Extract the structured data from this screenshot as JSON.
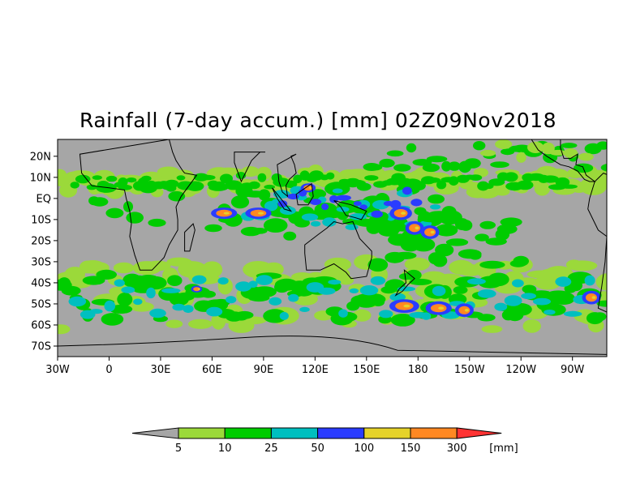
{
  "title": "Rainfall (7-day accum.) [mm] 02Z09Nov2018",
  "map": {
    "background_color": "#a6a6a6",
    "lat_labels": [
      "20N",
      "10N",
      "EQ",
      "10S",
      "20S",
      "30S",
      "40S",
      "50S",
      "60S",
      "70S"
    ],
    "lat_values": [
      20,
      10,
      0,
      -10,
      -20,
      -30,
      -40,
      -50,
      -60,
      -70
    ],
    "lon_labels": [
      "30W",
      "0",
      "30E",
      "60E",
      "90E",
      "120E",
      "150E",
      "180",
      "150W",
      "120W",
      "90W"
    ],
    "lon_values": [
      -30,
      0,
      30,
      60,
      90,
      120,
      150,
      180,
      210,
      240,
      270
    ],
    "lon_range": [
      -30,
      290
    ],
    "lat_range": [
      -75,
      28
    ]
  },
  "colorbar": {
    "unit": "[mm]",
    "ticks": [
      "5",
      "10",
      "25",
      "50",
      "100",
      "150",
      "300"
    ],
    "colors": [
      "#9bd93a",
      "#00cc00",
      "#00bfbf",
      "#2a3cff",
      "#e5d22a",
      "#ff8822"
    ],
    "under_color": "#a6a6a6",
    "over_color": "#ff3333"
  },
  "rain_colors": {
    "c1": "#9bd93a",
    "c2": "#00cc00",
    "c3": "#00bfbf",
    "c4": "#2a3cff",
    "c5": "#e5d22a",
    "c6": "#ff8822"
  }
}
